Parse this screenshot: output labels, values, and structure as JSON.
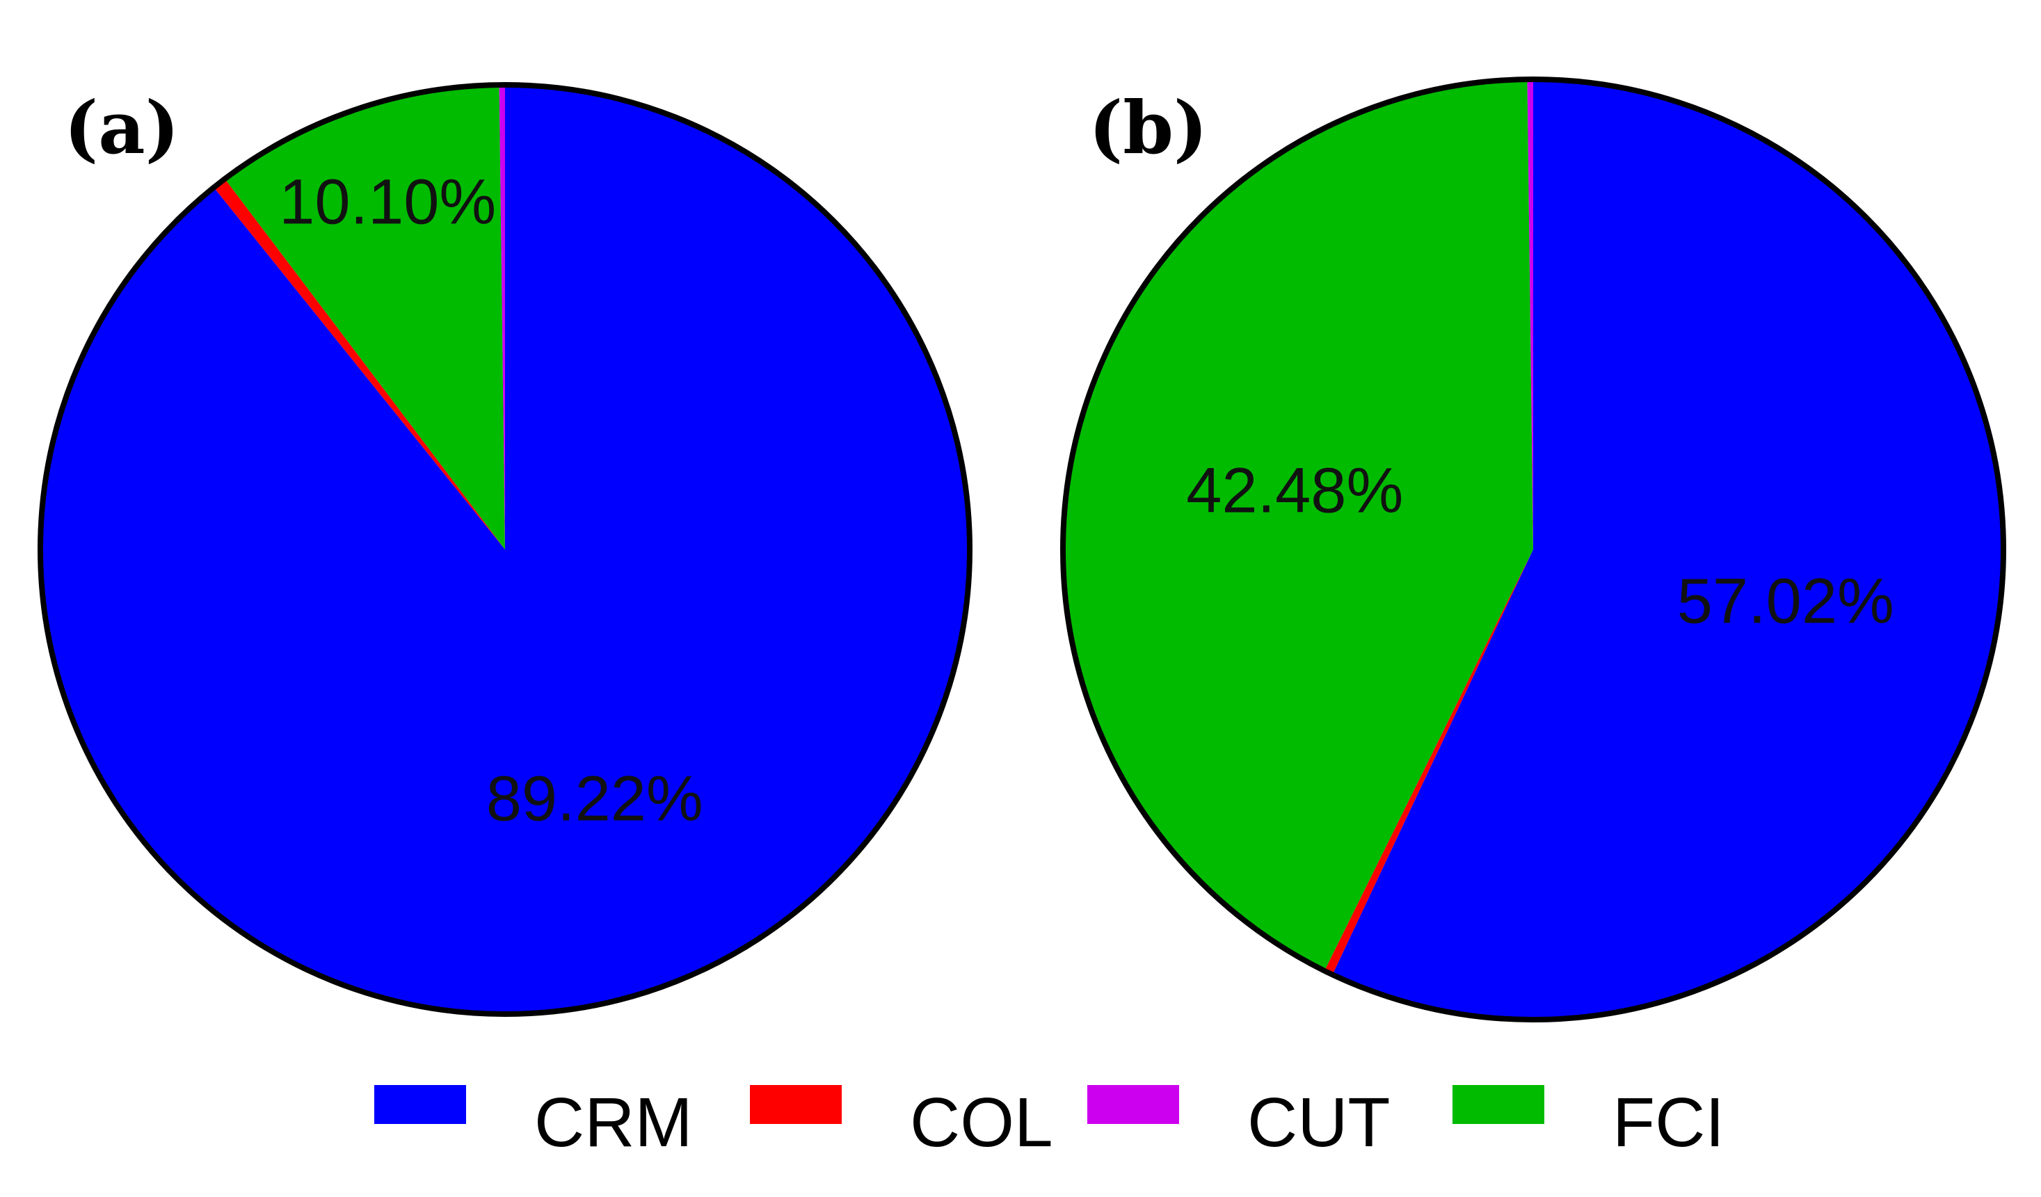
{
  "chart_data": [
    {
      "type": "pie",
      "panel_label": "(a)",
      "slices": [
        {
          "name": "CRM",
          "value": 89.22,
          "label": "89.22%"
        },
        {
          "name": "COL",
          "value": 0.48,
          "label": ""
        },
        {
          "name": "FCI",
          "value": 10.1,
          "label": "10.10%"
        },
        {
          "name": "CUT",
          "value": 0.2,
          "label": ""
        }
      ],
      "start_angle_deg": 0,
      "direction": "clockwise"
    },
    {
      "type": "pie",
      "panel_label": "(b)",
      "slices": [
        {
          "name": "CRM",
          "value": 57.02,
          "label": "57.02%"
        },
        {
          "name": "COL",
          "value": 0.3,
          "label": ""
        },
        {
          "name": "FCI",
          "value": 42.48,
          "label": "42.48%"
        },
        {
          "name": "CUT",
          "value": 0.2,
          "label": ""
        }
      ],
      "start_angle_deg": 0,
      "direction": "clockwise"
    }
  ],
  "legend": {
    "placement": "bottom",
    "items": [
      {
        "name": "CRM",
        "color": "#0000ff"
      },
      {
        "name": "COL",
        "color": "#ff0000"
      },
      {
        "name": "CUT",
        "color": "#cc00ee"
      },
      {
        "name": "FCI",
        "color": "#00bb00"
      }
    ]
  },
  "colors": {
    "CRM": "#0000ff",
    "COL": "#ff0000",
    "CUT": "#cc00ee",
    "FCI": "#00bb00",
    "outline": "#000000"
  }
}
